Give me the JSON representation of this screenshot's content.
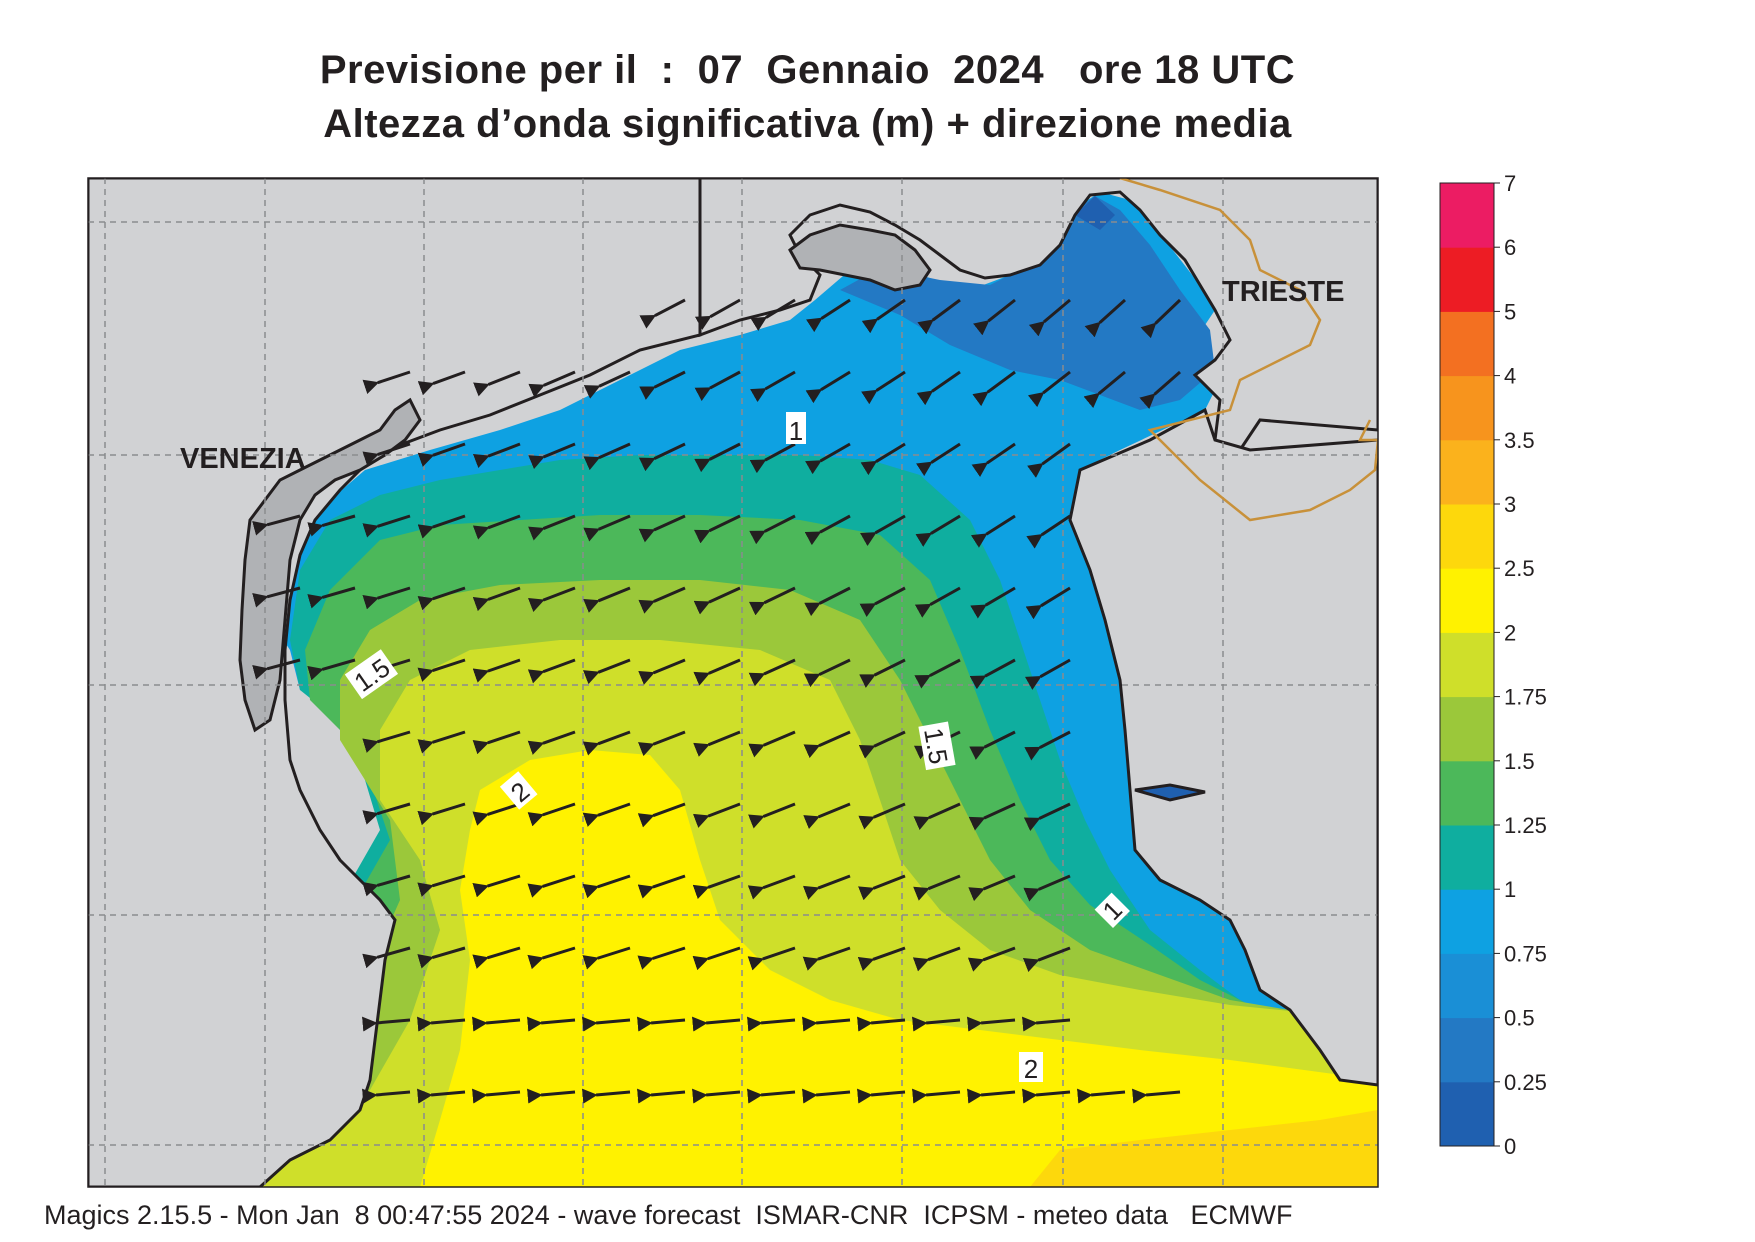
{
  "title_line1": "Previsione per il  :  07  Gennaio  2024   ore 18 UTC",
  "title_line2": "Altezza d’onda significativa (m) + direzione media",
  "footer": "Magics 2.15.5 - Mon Jan  8 00:47:55 2024 - wave forecast  ISMAR-CNR  ICPSM - meteo data   ECMWF",
  "places": {
    "venezia": "VENEZIA",
    "trieste": "TRIESTE"
  },
  "contour_labels": [
    "1",
    "1.5",
    "1.5",
    "2",
    "2",
    "1"
  ],
  "legend": {
    "ticks": [
      "0",
      "0.25",
      "0.5",
      "0.75",
      "1",
      "1.25",
      "1.5",
      "1.75",
      "2",
      "2.5",
      "3",
      "3.5",
      "4",
      "5",
      "6",
      "7"
    ],
    "colors": [
      "#1f60b0",
      "#2379c4",
      "#1a8fd6",
      "#0ea1e2",
      "#0fae9f",
      "#4cb85a",
      "#9bc83a",
      "#cfdf2a",
      "#fff200",
      "#fdd80c",
      "#fbb21c",
      "#f7941d",
      "#f37021",
      "#ed1c24",
      "#ec1c63"
    ]
  },
  "colors": {
    "land": "#d1d2d4",
    "coast": "#231f20",
    "border": "#c8913a",
    "arrow": "#231f20"
  },
  "arrow_direction": "wave direction toward south-west / west"
}
